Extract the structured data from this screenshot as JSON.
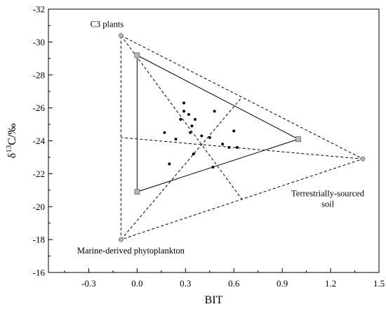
{
  "chart_data": {
    "type": "scatter",
    "xlabel": "BIT",
    "ylabel_main": "δ",
    "ylabel_sup": "13",
    "ylabel_rest": "C/‰",
    "xlim": [
      -0.55,
      1.5
    ],
    "ylim": [
      -16,
      -32
    ],
    "y_axis_reversed": true,
    "x_ticks": [
      -0.3,
      0.0,
      0.3,
      0.6,
      0.9,
      1.2,
      1.5
    ],
    "x_tick_labels": [
      "-0.3",
      "0.0",
      "0.3",
      "0.6",
      "0.9",
      "1.2",
      "1.5"
    ],
    "y_ticks": [
      -16,
      -18,
      -20,
      -22,
      -24,
      -26,
      -28,
      -30,
      -32
    ],
    "y_tick_labels": [
      "-16",
      "-18",
      "-20",
      "-22",
      "-24",
      "-26",
      "-28",
      "-30",
      "-32"
    ],
    "grid": false,
    "outer_triangle": [
      {
        "x": -0.1,
        "y": -30.4,
        "label": "C3 plants"
      },
      {
        "x": 1.4,
        "y": -22.9,
        "label_line1": "Terrestrially-sourced",
        "label_line2": "soil"
      },
      {
        "x": -0.1,
        "y": -18.0,
        "label": "Marine-derived phytoplankton"
      }
    ],
    "inner_triangle": [
      {
        "x": 0.0,
        "y": -29.2
      },
      {
        "x": 1.0,
        "y": -24.1
      },
      {
        "x": 0.0,
        "y": -20.9
      }
    ],
    "points": [
      {
        "x": 0.29,
        "y": -26.3
      },
      {
        "x": 0.29,
        "y": -25.8
      },
      {
        "x": 0.32,
        "y": -25.6
      },
      {
        "x": 0.48,
        "y": -25.8
      },
      {
        "x": 0.27,
        "y": -25.3
      },
      {
        "x": 0.36,
        "y": -25.3
      },
      {
        "x": 0.34,
        "y": -24.9
      },
      {
        "x": 0.6,
        "y": -24.6
      },
      {
        "x": 0.17,
        "y": -24.5
      },
      {
        "x": 0.33,
        "y": -24.5
      },
      {
        "x": 0.4,
        "y": -24.3
      },
      {
        "x": 0.24,
        "y": -24.1
      },
      {
        "x": 0.45,
        "y": -24.2
      },
      {
        "x": 0.53,
        "y": -23.8
      },
      {
        "x": 0.57,
        "y": -23.6
      },
      {
        "x": 0.62,
        "y": -23.6
      },
      {
        "x": 0.35,
        "y": -23.2
      },
      {
        "x": 0.2,
        "y": -22.6
      },
      {
        "x": 0.47,
        "y": -22.4
      }
    ]
  }
}
